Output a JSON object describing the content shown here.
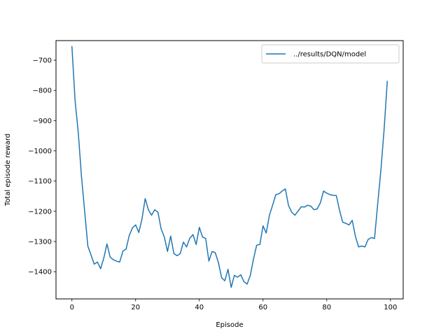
{
  "chart_data": {
    "type": "line",
    "title": "",
    "xlabel": "Episode",
    "ylabel": "Total episode reward",
    "xlim": [
      -5,
      104
    ],
    "ylim": [
      -1490,
      -635
    ],
    "xticks": [
      0,
      20,
      40,
      60,
      80,
      100
    ],
    "yticks": [
      -1400,
      -1300,
      -1200,
      -1100,
      -1000,
      -900,
      -800,
      -700
    ],
    "ytick_labels": [
      "−1400",
      "−1300",
      "−1200",
      "−1100",
      "−1000",
      "−900",
      "−800",
      "−700"
    ],
    "grid": false,
    "legend_position": "top-right",
    "series": [
      {
        "name": "../results/DQN/model",
        "color": "#1f77b4",
        "x": [
          0,
          1,
          2,
          3,
          4,
          5,
          6,
          7,
          8,
          9,
          10,
          11,
          12,
          13,
          14,
          15,
          16,
          17,
          18,
          19,
          20,
          21,
          22,
          23,
          24,
          25,
          26,
          27,
          28,
          29,
          30,
          31,
          32,
          33,
          34,
          35,
          36,
          37,
          38,
          39,
          40,
          41,
          42,
          43,
          44,
          45,
          46,
          47,
          48,
          49,
          50,
          51,
          52,
          53,
          54,
          55,
          56,
          57,
          58,
          59,
          60,
          61,
          62,
          63,
          64,
          65,
          66,
          67,
          68,
          69,
          70,
          71,
          72,
          73,
          74,
          75,
          76,
          77,
          78,
          79,
          80,
          81,
          82,
          83,
          84,
          85,
          86,
          87,
          88,
          89,
          90,
          91,
          92,
          93,
          94,
          95,
          96,
          97,
          98,
          99
        ],
        "y": [
          -655,
          -835,
          -940,
          -1085,
          -1200,
          -1315,
          -1345,
          -1375,
          -1368,
          -1390,
          -1355,
          -1308,
          -1352,
          -1360,
          -1365,
          -1368,
          -1332,
          -1325,
          -1280,
          -1255,
          -1245,
          -1270,
          -1225,
          -1158,
          -1195,
          -1213,
          -1195,
          -1203,
          -1258,
          -1285,
          -1333,
          -1282,
          -1340,
          -1347,
          -1340,
          -1302,
          -1318,
          -1289,
          -1277,
          -1310,
          -1253,
          -1285,
          -1290,
          -1365,
          -1333,
          -1337,
          -1370,
          -1420,
          -1430,
          -1392,
          -1452,
          -1412,
          -1418,
          -1410,
          -1433,
          -1441,
          -1412,
          -1358,
          -1312,
          -1310,
          -1248,
          -1272,
          -1213,
          -1180,
          -1145,
          -1142,
          -1133,
          -1126,
          -1181,
          -1203,
          -1213,
          -1199,
          -1185,
          -1186,
          -1180,
          -1183,
          -1195,
          -1192,
          -1172,
          -1133,
          -1140,
          -1145,
          -1147,
          -1148,
          -1196,
          -1236,
          -1240,
          -1245,
          -1230,
          -1283,
          -1318,
          -1315,
          -1318,
          -1293,
          -1287,
          -1290,
          -1175,
          -1063,
          -930,
          -770
        ]
      }
    ]
  }
}
